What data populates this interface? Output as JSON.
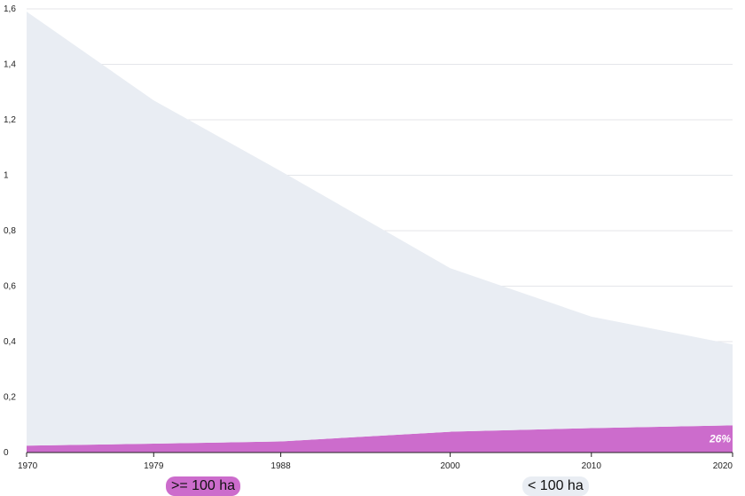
{
  "chart_data": {
    "type": "area",
    "stacked": true,
    "x": [
      1970,
      1979,
      1988,
      2000,
      2010,
      2020
    ],
    "x_tick_labels": [
      "1970",
      "1979",
      "1988",
      "2000",
      "2010",
      "2020"
    ],
    "y_tick_labels": [
      "0",
      "0,2",
      "0,4",
      "0,6",
      "0,8",
      "1",
      "1,2",
      "1,4",
      "1,6"
    ],
    "ylim": [
      0,
      1.6
    ],
    "grid": true,
    "series": [
      {
        "name": ">= 100 ha",
        "color": "#cc6ccc",
        "values": [
          0.025,
          0.032,
          0.04,
          0.075,
          0.088,
          0.098
        ]
      },
      {
        "name": "< 100 ha",
        "color": "#e9edf3",
        "values": [
          1.565,
          1.238,
          0.975,
          0.59,
          0.402,
          0.292
        ]
      }
    ],
    "annotations": [
      {
        "text": "26%",
        "x": 2020,
        "series": ">= 100 ha"
      }
    ],
    "legend_position": "bottom"
  }
}
